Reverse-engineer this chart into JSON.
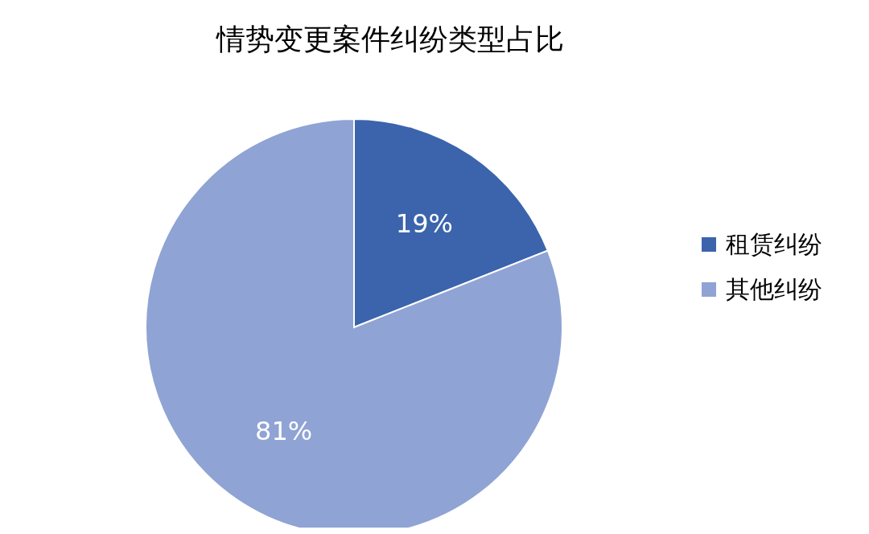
{
  "chart_data": {
    "type": "pie",
    "title": "情势变更案件纠纷类型占比",
    "categories": [
      "租赁纠纷",
      "其他纠纷"
    ],
    "values": [
      19,
      81
    ],
    "value_labels": [
      "19%",
      "81%"
    ],
    "colors": [
      "#3b64ad",
      "#8fa3d4"
    ],
    "legend": "right"
  }
}
